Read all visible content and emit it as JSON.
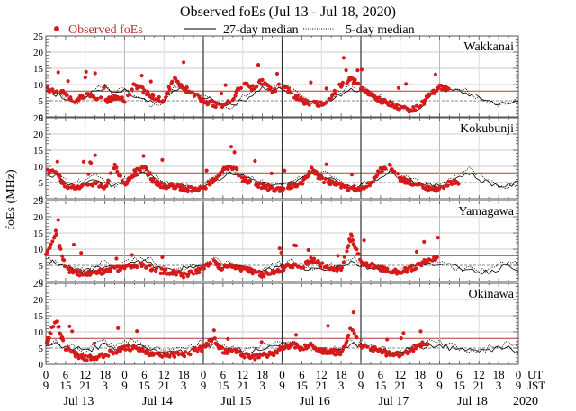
{
  "chart_data": {
    "type": "scatter",
    "title": "Observed foEs (Jul 13 - Jul 18, 2020)",
    "ylabel": "foEs (MHz)",
    "ylim": [
      0,
      25
    ],
    "yticks": [
      "0",
      "5",
      "10",
      "15",
      "20",
      "25"
    ],
    "threshold_mhz": 8,
    "reference_mhz": 5,
    "legend": {
      "observed": "Observed foEs",
      "median27": "27-day median",
      "median5": "5-day median",
      "placement": "top"
    },
    "x_ticks": {
      "ut": [
        "0",
        "6",
        "12",
        "18",
        "0",
        "6",
        "12",
        "18",
        "0",
        "6",
        "12",
        "18",
        "0",
        "6",
        "12",
        "18",
        "0",
        "6",
        "12",
        "18",
        "0",
        "6",
        "12",
        "18",
        "0"
      ],
      "jst": [
        "9",
        "15",
        "21",
        "3",
        "9",
        "15",
        "21",
        "3",
        "9",
        "15",
        "21",
        "3",
        "9",
        "15",
        "21",
        "3",
        "9",
        "15",
        "21",
        "3",
        "9",
        "15",
        "21",
        "3",
        "9"
      ],
      "ut_label": "UT",
      "jst_label": "JST"
    },
    "days": [
      "Jul 13",
      "Jul 14",
      "Jul 15",
      "Jul 16",
      "Jul 17",
      "Jul 18"
    ],
    "year": "2020",
    "colors": {
      "observed": "#d41a1a",
      "threshold": "#b03a3a",
      "median": "#000000",
      "grid": "#cccccc"
    },
    "hours_per_step": 3,
    "stations": [
      {
        "name": "Wakkanai",
        "median27": [
          8,
          7,
          6,
          5,
          6,
          8,
          9,
          7,
          8,
          6,
          5,
          4,
          5,
          8,
          9,
          7,
          6,
          5,
          4,
          4,
          5,
          7,
          9,
          8,
          9,
          7,
          6,
          5,
          4,
          5,
          7,
          9,
          8,
          7,
          6,
          4,
          3,
          2,
          3,
          6,
          9,
          8,
          8,
          7,
          6,
          5,
          4,
          4,
          5,
          6
        ],
        "median5": [
          9,
          8,
          6,
          4,
          6,
          9,
          10,
          7,
          9,
          7,
          5,
          3,
          5,
          9,
          10,
          7,
          7,
          5,
          4,
          3,
          6,
          8,
          10,
          9,
          10,
          8,
          6,
          5,
          4,
          6,
          8,
          10,
          9,
          8,
          6,
          4,
          3,
          2,
          4,
          7,
          10,
          9,
          9,
          8,
          6,
          5,
          4,
          4,
          5,
          7
        ],
        "observed": [
          9,
          8,
          7,
          5,
          7,
          6,
          5,
          6,
          5,
          10,
          8,
          6,
          5,
          12,
          9,
          7,
          5,
          4,
          3,
          6,
          10,
          9,
          11,
          8,
          10,
          7,
          5,
          4,
          4,
          6,
          10,
          12,
          9,
          7,
          5,
          4,
          3,
          2,
          3,
          7,
          9,
          null,
          null,
          null,
          null,
          null,
          null,
          null,
          null,
          null
        ]
      },
      {
        "name": "Kokubunji",
        "median27": [
          8,
          7,
          5,
          4,
          5,
          6,
          5,
          4,
          5,
          7,
          8,
          6,
          5,
          4,
          4,
          3,
          4,
          5,
          7,
          8,
          7,
          6,
          5,
          4,
          4,
          5,
          6,
          8,
          7,
          6,
          5,
          4,
          4,
          5,
          7,
          8,
          7,
          6,
          5,
          4,
          4,
          5,
          7,
          8,
          6,
          5,
          4,
          4,
          5,
          6
        ],
        "median5": [
          9,
          8,
          6,
          5,
          6,
          7,
          6,
          4,
          6,
          8,
          9,
          7,
          5,
          4,
          4,
          3,
          4,
          6,
          8,
          9,
          8,
          6,
          5,
          4,
          4,
          5,
          7,
          9,
          8,
          7,
          5,
          4,
          4,
          6,
          8,
          9,
          8,
          6,
          5,
          4,
          4,
          6,
          8,
          9,
          7,
          5,
          4,
          4,
          5,
          7
        ],
        "observed": [
          9,
          8,
          4,
          3,
          4,
          5,
          3,
          10,
          4,
          8,
          10,
          5,
          4,
          4,
          3,
          3,
          3,
          6,
          9,
          10,
          6,
          5,
          4,
          3,
          3,
          4,
          5,
          9,
          6,
          5,
          4,
          3,
          3,
          5,
          9,
          10,
          6,
          5,
          4,
          3,
          3,
          5,
          null,
          null,
          null,
          null,
          null,
          null,
          null,
          null
        ]
      },
      {
        "name": "Yamagawa",
        "median27": [
          6,
          6,
          5,
          4,
          3,
          4,
          5,
          4,
          5,
          6,
          6,
          5,
          4,
          3,
          4,
          4,
          5,
          6,
          5,
          5,
          4,
          3,
          3,
          4,
          5,
          5,
          4,
          4,
          4,
          4,
          5,
          6,
          5,
          4,
          4,
          3,
          3,
          4,
          5,
          6,
          5,
          5,
          4,
          4,
          3,
          3,
          4,
          5,
          4,
          5
        ],
        "median5": [
          7,
          6,
          5,
          4,
          3,
          5,
          6,
          4,
          6,
          7,
          7,
          6,
          4,
          3,
          4,
          5,
          6,
          7,
          6,
          5,
          4,
          3,
          3,
          5,
          6,
          6,
          5,
          4,
          4,
          5,
          6,
          7,
          6,
          5,
          4,
          3,
          3,
          5,
          6,
          7,
          6,
          5,
          4,
          4,
          3,
          3,
          5,
          6,
          5,
          5
        ],
        "observed": [
          8,
          15,
          4,
          3,
          2,
          3,
          3,
          4,
          4,
          5,
          5,
          4,
          3,
          3,
          2,
          3,
          4,
          6,
          4,
          5,
          4,
          3,
          2,
          3,
          4,
          5,
          4,
          7,
          5,
          4,
          4,
          14,
          6,
          5,
          4,
          3,
          3,
          4,
          5,
          7,
          null,
          null,
          null,
          null,
          null,
          null,
          null,
          null,
          null,
          null
        ]
      },
      {
        "name": "Okinawa",
        "median27": [
          6,
          6,
          5,
          5,
          4,
          5,
          6,
          5,
          6,
          6,
          5,
          5,
          4,
          4,
          4,
          5,
          6,
          6,
          5,
          5,
          4,
          4,
          5,
          5,
          6,
          6,
          5,
          5,
          4,
          4,
          5,
          6,
          6,
          5,
          4,
          4,
          4,
          5,
          5,
          6,
          6,
          5,
          5,
          4,
          4,
          4,
          5,
          5,
          4,
          5
        ],
        "median5": [
          7,
          7,
          6,
          5,
          4,
          6,
          7,
          5,
          7,
          7,
          6,
          5,
          4,
          5,
          5,
          6,
          7,
          7,
          6,
          5,
          4,
          5,
          6,
          6,
          7,
          7,
          6,
          5,
          4,
          5,
          6,
          7,
          7,
          6,
          5,
          4,
          4,
          6,
          6,
          7,
          7,
          6,
          5,
          4,
          4,
          5,
          6,
          6,
          5,
          5
        ],
        "observed": [
          6,
          14,
          5,
          3,
          2,
          2,
          3,
          4,
          5,
          5,
          4,
          3,
          3,
          3,
          3,
          4,
          5,
          8,
          4,
          4,
          3,
          2,
          3,
          3,
          5,
          6,
          5,
          6,
          4,
          4,
          3,
          11,
          6,
          5,
          4,
          3,
          3,
          4,
          6,
          null,
          null,
          null,
          null,
          null,
          null,
          null,
          null,
          null,
          null,
          null
        ]
      }
    ]
  }
}
